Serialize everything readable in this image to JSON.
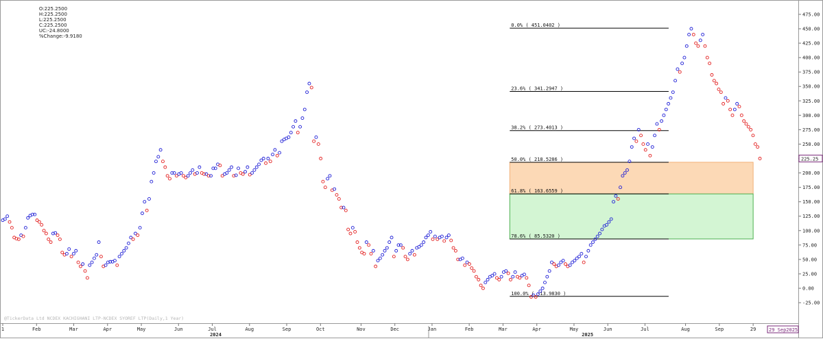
{
  "header": {
    "open": "O:225.2500",
    "high": "H:225.2500",
    "low": "L:225.2500",
    "close": "C:225.2500",
    "change": "UC:-24.8000",
    "pct_change": "%Change:-9.9180"
  },
  "watermark": "@TickerData Ltd NCDEX KACHIGHANI LTP-NCDEX SYOREF LTP(Daily,1 Year)",
  "last_price_label": "225.25",
  "date_label": "29 Sep2025",
  "colors": {
    "up": "#1f1fd6",
    "down": "#e32020",
    "fib_line": "#000000",
    "zone_orange": "#fcd9b6",
    "zone_orange_border": "#f2b077",
    "zone_green": "#d3f5d3",
    "zone_green_border": "#4caf50",
    "date_box": "#7b2a7b"
  },
  "chart_data": {
    "type": "scatter",
    "ylim": [
      -30,
      485
    ],
    "yticks": [
      "-25.00",
      "0.00",
      "25.00",
      "50.00",
      "75.00",
      "100.00",
      "125.00",
      "150.00",
      "175.00",
      "200.00",
      "225.00",
      "250.00",
      "275.00",
      "300.00",
      "325.00",
      "350.00",
      "375.00",
      "400.00",
      "425.00",
      "450.00",
      "475.00"
    ],
    "ytick_values": [
      -25,
      0,
      25,
      50,
      75,
      100,
      125,
      150,
      175,
      200,
      225,
      250,
      275,
      300,
      325,
      350,
      375,
      400,
      425,
      450,
      475
    ],
    "x_month_labels": [
      {
        "t": 0,
        "label": "1"
      },
      {
        "t": 10,
        "label": "Feb"
      },
      {
        "t": 21,
        "label": "Mar"
      },
      {
        "t": 31,
        "label": "Apr"
      },
      {
        "t": 41,
        "label": "May"
      },
      {
        "t": 52,
        "label": "Jun"
      },
      {
        "t": 62,
        "label": "Jul"
      },
      {
        "t": 73,
        "label": "Aug"
      },
      {
        "t": 84,
        "label": "Sep"
      },
      {
        "t": 94,
        "label": "Oct"
      },
      {
        "t": 106,
        "label": "Nov"
      },
      {
        "t": 116,
        "label": "Dec"
      },
      {
        "t": 127,
        "label": "Jan"
      },
      {
        "t": 138,
        "label": "Feb"
      },
      {
        "t": 148,
        "label": "Mar"
      },
      {
        "t": 158,
        "label": "Apr"
      },
      {
        "t": 169,
        "label": "May"
      },
      {
        "t": 179,
        "label": "Jun"
      },
      {
        "t": 190,
        "label": "Jul"
      },
      {
        "t": 202,
        "label": "Aug"
      },
      {
        "t": 212,
        "label": "Sep"
      },
      {
        "t": 222,
        "label": "29"
      }
    ],
    "x_year_labels": [
      {
        "t": 63,
        "label": "2024"
      },
      {
        "t": 173,
        "label": "2025"
      }
    ],
    "year_dividers": [
      126
    ],
    "fib_levels": [
      {
        "label": "0.0% ( 451.0402 )",
        "value": 451.0402
      },
      {
        "label": "23.6% ( 341.2947 )",
        "value": 341.2947
      },
      {
        "label": "38.2% ( 273.4013 )",
        "value": 273.4013
      },
      {
        "label": "50.0% ( 218.5286 )",
        "value": 218.5286
      },
      {
        "label": "61.8% ( 163.6559 )",
        "value": 163.6559
      },
      {
        "label": "78.6% ( 85.5320 )",
        "value": 85.532
      },
      {
        "label": "100.0% ( -13.9830 )",
        "value": -13.983
      }
    ],
    "fib_t_start": 150,
    "fib_t_end": 197,
    "zones": [
      {
        "from": 163.6559,
        "to": 218.5286,
        "kind": "orange"
      },
      {
        "from": 85.532,
        "to": 163.6559,
        "kind": "green"
      }
    ],
    "zone_t_start": 150,
    "zone_t_end": 222,
    "t_range": [
      0,
      224
    ],
    "closes": [
      118,
      120,
      125,
      115,
      105,
      88,
      86,
      85,
      92,
      90,
      105,
      122,
      126,
      128,
      128,
      118,
      115,
      110,
      100,
      95,
      85,
      80,
      95,
      96,
      92,
      85,
      62,
      58,
      60,
      68,
      55,
      60,
      65,
      45,
      38,
      42,
      30,
      18,
      40,
      45,
      52,
      58,
      80,
      55,
      38,
      40,
      45,
      46,
      46,
      48,
      40,
      55,
      60,
      65,
      70,
      78,
      88,
      85,
      95,
      92,
      105,
      130,
      150,
      135,
      155,
      185,
      200,
      220,
      228,
      240,
      220,
      210,
      195,
      190,
      200,
      200,
      195,
      198,
      200,
      195,
      192,
      195,
      200,
      205,
      198,
      200,
      210,
      200,
      198,
      198,
      195,
      195,
      208,
      208,
      215,
      213,
      195,
      198,
      200,
      205,
      210,
      195,
      196,
      208,
      200,
      198,
      202,
      210,
      197,
      200,
      205,
      210,
      215,
      222,
      225,
      217,
      225,
      220,
      232,
      240,
      230,
      235,
      255,
      258,
      260,
      262,
      270,
      280,
      290,
      270,
      280,
      295,
      310,
      340,
      355,
      348,
      255,
      262,
      250,
      225,
      185,
      175,
      190,
      195,
      170,
      172,
      162,
      155,
      140,
      140,
      135,
      102,
      95,
      105,
      98,
      80,
      70,
      62,
      60,
      80,
      75,
      60,
      65,
      38,
      48,
      52,
      58,
      65,
      70,
      80,
      88,
      55,
      65,
      75,
      75,
      70,
      55,
      50,
      60,
      65,
      58,
      70,
      72,
      75,
      80,
      88,
      92,
      98,
      85,
      90,
      85,
      88,
      90,
      82,
      88,
      92,
      83,
      70,
      65,
      50,
      50,
      52,
      40,
      45,
      42,
      35,
      30,
      20,
      15,
      5,
      0,
      10,
      15,
      20,
      22,
      25,
      18,
      15,
      20,
      28,
      30,
      26,
      15,
      20,
      28,
      20,
      18,
      22,
      24,
      18,
      5,
      -15,
      -12,
      -15,
      -10,
      -5,
      0,
      10,
      20,
      30,
      45,
      42,
      38,
      40,
      45,
      48,
      42,
      38,
      40,
      45,
      48,
      52,
      55,
      60,
      45,
      55,
      65,
      75,
      80,
      85,
      90,
      95,
      102,
      108,
      110,
      115,
      120,
      150,
      160,
      155,
      175,
      195,
      200,
      205,
      220,
      245,
      260,
      255,
      275,
      265,
      250,
      240,
      250,
      230,
      245,
      265,
      285,
      275,
      290,
      300,
      310,
      320,
      330,
      340,
      360,
      380,
      375,
      390,
      400,
      420,
      440,
      450,
      440,
      425,
      420,
      430,
      440,
      420,
      400,
      390,
      370,
      360,
      355,
      345,
      340,
      320,
      330,
      325,
      310,
      300,
      310,
      320,
      315,
      300,
      290,
      285,
      280,
      275,
      265,
      250,
      245,
      225
    ]
  }
}
